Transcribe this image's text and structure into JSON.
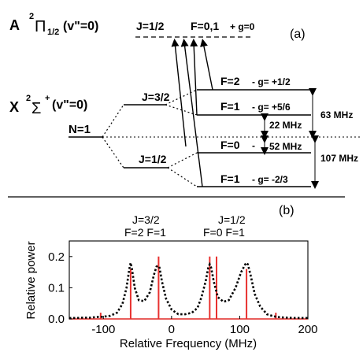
{
  "panel_a": {
    "panel_label": "(a)",
    "excited_state": {
      "letter": "A",
      "sup": "2",
      "pi": "Π",
      "sub": "1/2",
      "vib": "(v\"=0)",
      "j": "J=1/2",
      "f": "F=0,1",
      "g": "+ g=0"
    },
    "ground_state": {
      "letter": "X",
      "sup": "2",
      "sigma": "Σ",
      "plus": "+",
      "vib": "(v\"=0)",
      "n": "N=1"
    },
    "j_upper": "J=3/2",
    "j_lower": "J=1/2",
    "levels": [
      {
        "f": "F=2",
        "g": "- g= +1/2"
      },
      {
        "f": "F=1",
        "g": "- g= +5/6"
      },
      {
        "f": "F=0",
        "g": "-"
      },
      {
        "f": "F=1",
        "g": "- g= -2/3"
      }
    ],
    "splittings": {
      "upper_total": "63 MHz",
      "upper_gap": "22 MHz",
      "lower_gap": "52 MHz",
      "lower_total": "107 MHz"
    }
  },
  "panel_b": {
    "panel_label": "(b)",
    "top_labels": [
      {
        "j": "J=3/2",
        "f": "F=2 F=1"
      },
      {
        "j": "J=1/2",
        "f": "F=0   F=1"
      }
    ]
  },
  "chart_data": {
    "type": "line",
    "xlabel": "Relative Frequency (MHz)",
    "ylabel": "Relative power",
    "xlim": [
      -150,
      200
    ],
    "ylim": [
      0,
      0.25
    ],
    "xticks": [
      "-100",
      "0",
      "100",
      "200"
    ],
    "yticks": [
      "0.0",
      "0.1",
      "0.2"
    ],
    "series": [
      {
        "style": "dotted-black",
        "x": [
          -150,
          -140,
          -130,
          -120,
          -110,
          -100,
          -90,
          -80,
          -72,
          -66,
          -62,
          -60,
          -58,
          -54,
          -48,
          -40,
          -32,
          -26,
          -22,
          -20,
          -18,
          -14,
          -8,
          0,
          10,
          20,
          30,
          38,
          44,
          50,
          54,
          56,
          58,
          62,
          68,
          76,
          84,
          94,
          102,
          108,
          110,
          112,
          116,
          122,
          130,
          140,
          150,
          160,
          170,
          180,
          190,
          200
        ],
        "y": [
          0.003,
          0.003,
          0.004,
          0.004,
          0.006,
          0.007,
          0.01,
          0.02,
          0.048,
          0.1,
          0.16,
          0.18,
          0.16,
          0.1,
          0.06,
          0.057,
          0.085,
          0.14,
          0.168,
          0.17,
          0.168,
          0.12,
          0.065,
          0.03,
          0.015,
          0.015,
          0.02,
          0.035,
          0.07,
          0.12,
          0.165,
          0.175,
          0.165,
          0.12,
          0.07,
          0.055,
          0.06,
          0.1,
          0.15,
          0.175,
          0.18,
          0.175,
          0.14,
          0.08,
          0.04,
          0.015,
          0.008,
          0.005,
          0.004,
          0.003,
          0.003,
          0.003
        ]
      },
      {
        "style": "red-sticks",
        "x": [
          -104,
          -60,
          -19,
          56,
          66,
          110,
          153
        ],
        "y": [
          0.02,
          0.16,
          0.2,
          0.2,
          0.2,
          0.16,
          0.02
        ]
      }
    ],
    "colors": {
      "red": "#e8312f",
      "black": "#000000"
    }
  }
}
